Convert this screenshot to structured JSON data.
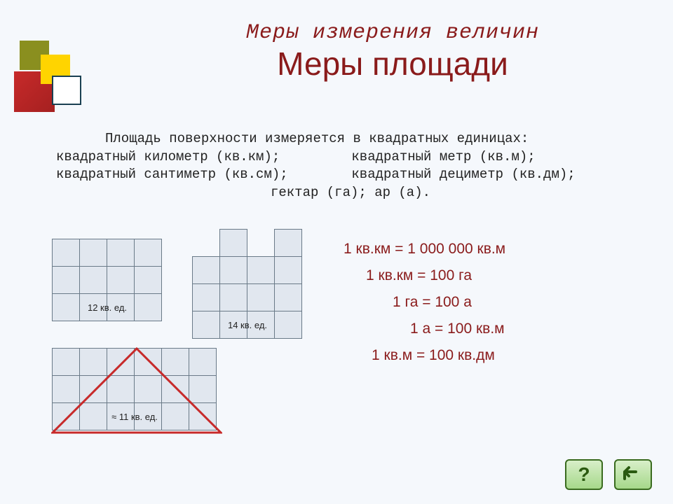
{
  "header": {
    "supertitle": "Меры измерения величин",
    "title": "Меры площади"
  },
  "paragraph": {
    "intro": "Площадь поверхности измеряется в квадратных единицах:",
    "units": {
      "km": "квадратный километр (кв.км);",
      "m": "квадратный метр (кв.м);",
      "cm": "квадратный сантиметр (кв.см);",
      "dm": "квадратный дециметр (кв.дм);",
      "ha_ar": "гектар (га); ар (а)."
    }
  },
  "diagrams": {
    "grid_cell_fill": "#e1e7ef",
    "grid_border": "#6a7a88",
    "triangle_stroke": "#c72a2a",
    "first": {
      "rows": 3,
      "cols": 4,
      "label_row": 2,
      "label": "12 кв. ед."
    },
    "second": {
      "shape": [
        [
          0,
          1,
          0,
          1
        ],
        [
          1,
          1,
          1,
          1
        ],
        [
          1,
          1,
          1,
          1
        ],
        [
          1,
          1,
          1,
          1
        ]
      ],
      "label_row": 3,
      "label": "14 кв. ед."
    },
    "third": {
      "rows": 3,
      "cols": 6,
      "label_row": 2,
      "label_prefix": "≈",
      "label": "11 кв. ед."
    }
  },
  "conversions": {
    "items": [
      "1 кв.км = 1 000 000 кв.м",
      "1 кв.км = 100 га",
      "1 га = 100 а",
      "1 а = 100 кв.м",
      "1 кв.м = 100 кв.дм"
    ],
    "text_color": "#8a1b1b"
  },
  "decor": {
    "olive": "#8a8f1f",
    "yellow": "#ffd400",
    "red": "#c72a2a",
    "border_dark": "#1a4052"
  },
  "nav": {
    "help_label": "?",
    "back_label": "↶"
  }
}
